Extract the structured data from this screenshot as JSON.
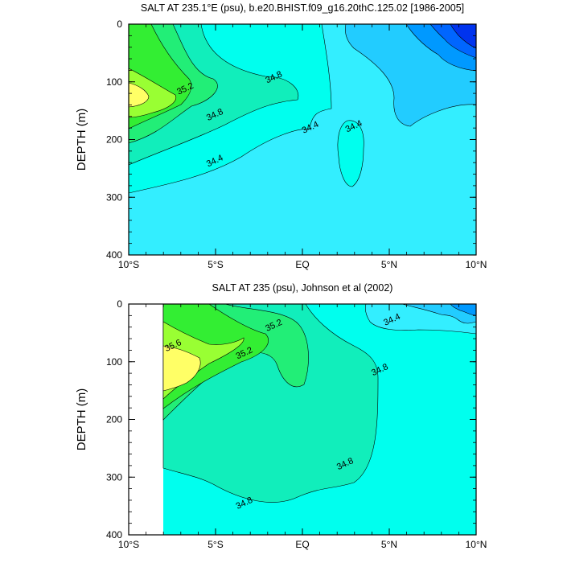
{
  "chart_data": [
    {
      "type": "heatmap",
      "title": "SALT AT 235.1°E (psu), b.e20.BHIST.f09_g16.20thC.125.02 [1986-2005]",
      "ylabel": "DEPTH (m)",
      "x_tick_labels": [
        "10°S",
        "5°S",
        "EQ",
        "5°N",
        "10°N"
      ],
      "x_tick_values": [
        -10,
        -5,
        0,
        5,
        10
      ],
      "y_tick_labels": [
        "0",
        "100",
        "200",
        "300",
        "400"
      ],
      "y_tick_values": [
        0,
        100,
        200,
        300,
        400
      ],
      "xlim": [
        -10,
        10
      ],
      "ylim": [
        400,
        0
      ],
      "contour_labels": [
        {
          "text": "35.2",
          "x": -6.7,
          "y": 115
        },
        {
          "text": "34.8",
          "x": -1.6,
          "y": 95
        },
        {
          "text": "34.8",
          "x": -5.0,
          "y": 160
        },
        {
          "text": "34.4",
          "x": 0.5,
          "y": 182
        },
        {
          "text": "34.4",
          "x": 3.0,
          "y": 180
        },
        {
          "text": "34.4",
          "x": -5.0,
          "y": 240
        }
      ],
      "colors": {
        "s35_6": "#ffff66",
        "s35_4": "#99ff33",
        "s35_2": "#33ee33",
        "s35_0": "#22ee77",
        "s34_8": "#11eebb",
        "s34_6": "#00ffee",
        "s34_4": "#33eeff",
        "s34_2": "#22ccff",
        "s34_0": "#0099ff",
        "s33_8": "#0066ff",
        "s33_6": "#0033ee"
      }
    },
    {
      "type": "heatmap",
      "title": "SALT AT 235 (psu), Johnson et al (2002)",
      "ylabel": "DEPTH (m)",
      "x_tick_labels": [
        "10°S",
        "5°S",
        "EQ",
        "5°N",
        "10°N"
      ],
      "x_tick_values": [
        -10,
        -5,
        0,
        5,
        10
      ],
      "y_tick_labels": [
        "0",
        "100",
        "200",
        "300",
        "400"
      ],
      "y_tick_values": [
        0,
        100,
        200,
        300,
        400
      ],
      "xlim": [
        -10,
        10
      ],
      "ylim": [
        400,
        0
      ],
      "data_xlim": [
        -8,
        10
      ],
      "contour_labels": [
        {
          "text": "35.6",
          "x": -7.4,
          "y": 75
        },
        {
          "text": "35.2",
          "x": -1.6,
          "y": 40
        },
        {
          "text": "35.2",
          "x": -3.3,
          "y": 88
        },
        {
          "text": "34.4",
          "x": 5.2,
          "y": 30
        },
        {
          "text": "34.8",
          "x": 4.5,
          "y": 117
        },
        {
          "text": "34.8",
          "x": 2.5,
          "y": 280
        },
        {
          "text": "34.8",
          "x": -3.3,
          "y": 348
        }
      ]
    }
  ]
}
